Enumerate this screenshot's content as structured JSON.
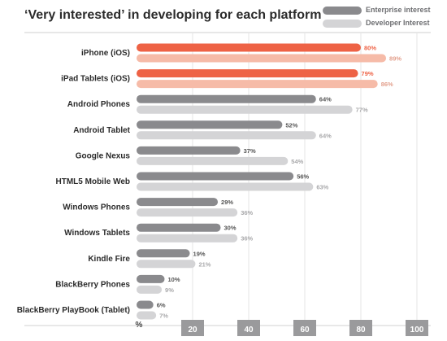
{
  "chart_data": {
    "type": "bar",
    "orientation": "horizontal",
    "title": "‘Very interested’ in developing for each platform",
    "categories": [
      "iPhone (iOS)",
      "iPad Tablets (iOS)",
      "Android Phones",
      "Android Tablet",
      "Google Nexus",
      "HTML5 Mobile Web",
      "Windows Phones",
      "Windows Tablets",
      "Kindle Fire",
      "BlackBerry Phones",
      "BlackBerry PlayBook (Tablet)"
    ],
    "series": [
      {
        "name": "Enterprise interest",
        "values": [
          80,
          79,
          64,
          52,
          37,
          56,
          29,
          30,
          19,
          10,
          6
        ],
        "color": "#8a8a8d"
      },
      {
        "name": "Developer Interest",
        "values": [
          89,
          86,
          77,
          64,
          54,
          63,
          36,
          36,
          21,
          9,
          7
        ],
        "color": "#d4d4d6"
      }
    ],
    "highlight_categories": [
      "iPhone (iOS)",
      "iPad Tablets (iOS)"
    ],
    "highlight_colors": {
      "primary": "#ee6245",
      "secondary": "#f6bba8"
    },
    "value_suffix": "%",
    "axis_unit_label": "%",
    "xlim": [
      0,
      100
    ],
    "xticks": [
      20,
      40,
      60,
      80,
      100
    ],
    "grid": "vertical",
    "legend_position": "top-right"
  }
}
